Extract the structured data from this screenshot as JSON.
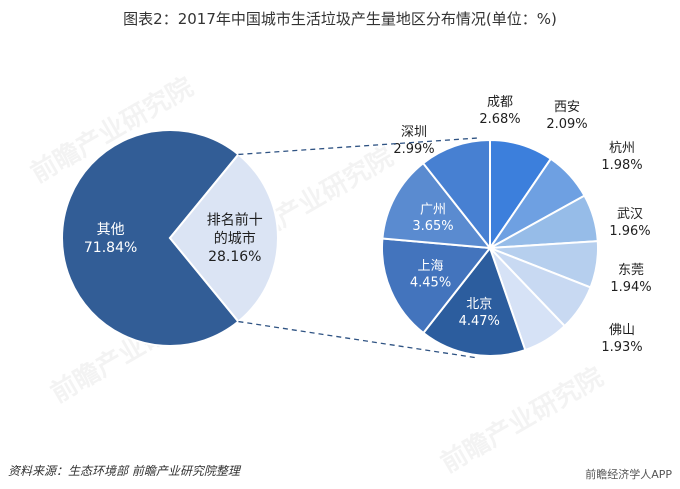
{
  "title": "图表2：2017年中国城市生活垃圾产生量地区分布情况(单位：%)",
  "source": "资料来源：生态环境部 前瞻产业研究院整理",
  "brand": "前瞻经济学人APP",
  "watermark": "前瞻产业研究院",
  "colors": {
    "main_other": "#325d96",
    "main_top10": "#dbe4f4",
    "label_dark": "#1f1f1f",
    "label_light": "#ffffff",
    "connector": "#2f5383"
  },
  "chart_data": [
    {
      "type": "pie",
      "title": "",
      "slices": [
        {
          "label": "其他",
          "value": 71.84,
          "display": "71.84%",
          "color": "#325d96"
        },
        {
          "label": "排名前十\n的城市",
          "value": 28.16,
          "display": "28.16%",
          "color": "#dbe4f4"
        }
      ]
    },
    {
      "type": "pie",
      "title": "",
      "slices": [
        {
          "label": "成都",
          "value": 2.68,
          "display": "2.68%",
          "color": "#3c7fdc",
          "label_inside": false
        },
        {
          "label": "西安",
          "value": 2.09,
          "display": "2.09%",
          "color": "#6ea0e2",
          "label_inside": false
        },
        {
          "label": "杭州",
          "value": 1.98,
          "display": "1.98%",
          "color": "#96bce8",
          "label_inside": false
        },
        {
          "label": "武汉",
          "value": 1.96,
          "display": "1.96%",
          "color": "#b6cfee",
          "label_inside": false
        },
        {
          "label": "东莞",
          "value": 1.94,
          "display": "1.94%",
          "color": "#c8d9f2",
          "label_inside": false
        },
        {
          "label": "佛山",
          "value": 1.93,
          "display": "1.93%",
          "color": "#d6e2f6",
          "label_inside": false
        },
        {
          "label": "北京",
          "value": 4.47,
          "display": "4.47%",
          "color": "#2c5d9e",
          "label_inside": true
        },
        {
          "label": "上海",
          "value": 4.45,
          "display": "4.45%",
          "color": "#4374bd",
          "label_inside": true
        },
        {
          "label": "广州",
          "value": 3.65,
          "display": "3.65%",
          "color": "#5a8bd0",
          "label_inside": true
        },
        {
          "label": "深圳",
          "value": 2.99,
          "display": "2.99%",
          "color": "#4780d2",
          "label_inside": false
        }
      ]
    }
  ]
}
